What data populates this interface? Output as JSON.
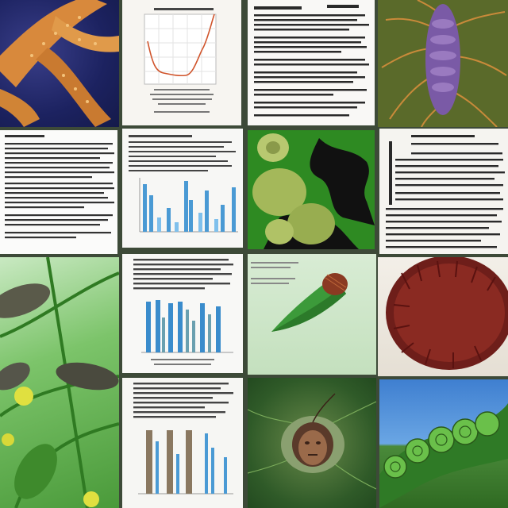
{
  "collage": {
    "tiles": [
      {
        "subject": "orange-tentacle-creature"
      },
      {
        "subject": "line-chart-document"
      },
      {
        "subject": "text-document"
      },
      {
        "subject": "purple-root-organism"
      },
      {
        "subject": "text-document"
      },
      {
        "subject": "bar-chart-document"
      },
      {
        "subject": "green-cell-cluster"
      },
      {
        "subject": "text-document"
      },
      {
        "subject": "green-plant-pods"
      },
      {
        "subject": "bar-chart-document"
      },
      {
        "subject": "green-seed-pod"
      },
      {
        "subject": "red-spiny-sphere"
      },
      {
        "subject": "bar-chart-document"
      },
      {
        "subject": "face-in-green-flora"
      },
      {
        "subject": "green-caterpillar"
      }
    ]
  }
}
